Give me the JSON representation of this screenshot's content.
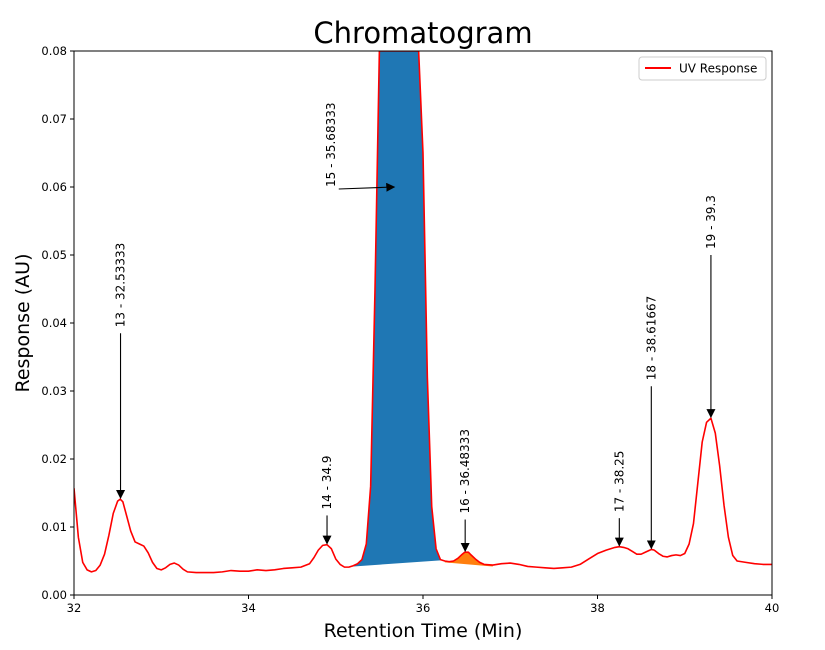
{
  "chart_data": {
    "type": "line",
    "title": "Chromatogram",
    "xlabel": "Retention Time (Min)",
    "ylabel": "Response (AU)",
    "xlim": [
      32,
      40
    ],
    "ylim": [
      0,
      0.08
    ],
    "xticks": [
      32,
      34,
      36,
      38,
      40
    ],
    "xtick_labels": [
      "32",
      "34",
      "36",
      "38",
      "40"
    ],
    "yticks": [
      0,
      0.01,
      0.02,
      0.03,
      0.04,
      0.05,
      0.06,
      0.07,
      0.08
    ],
    "ytick_labels": [
      "0.00",
      "0.01",
      "0.02",
      "0.03",
      "0.04",
      "0.05",
      "0.06",
      "0.07",
      "0.08"
    ],
    "grid": false,
    "legend": {
      "position": "top-right",
      "entries": [
        {
          "label": "UV Response",
          "color": "#ff0000"
        }
      ]
    },
    "series": [
      {
        "name": "UV Response",
        "color": "#ff0000",
        "x": [
          32.0,
          32.05,
          32.1,
          32.15,
          32.2,
          32.25,
          32.3,
          32.35,
          32.4,
          32.45,
          32.5,
          32.53,
          32.56,
          32.6,
          32.65,
          32.7,
          32.75,
          32.8,
          32.85,
          32.9,
          32.95,
          33.0,
          33.05,
          33.1,
          33.15,
          33.2,
          33.25,
          33.3,
          33.4,
          33.5,
          33.6,
          33.7,
          33.8,
          33.9,
          34.0,
          34.1,
          34.2,
          34.3,
          34.4,
          34.5,
          34.6,
          34.7,
          34.75,
          34.8,
          34.85,
          34.9,
          34.95,
          35.0,
          35.05,
          35.1,
          35.15,
          35.2,
          35.25,
          35.3,
          35.35,
          35.4,
          35.45,
          35.5,
          35.55,
          35.6,
          35.65,
          35.7,
          35.75,
          35.8,
          35.85,
          35.9,
          35.95,
          36.0,
          36.05,
          36.1,
          36.15,
          36.2,
          36.25,
          36.3,
          36.35,
          36.4,
          36.45,
          36.48,
          36.52,
          36.55,
          36.6,
          36.65,
          36.7,
          36.8,
          36.9,
          37.0,
          37.1,
          37.2,
          37.3,
          37.4,
          37.5,
          37.6,
          37.7,
          37.8,
          37.9,
          38.0,
          38.1,
          38.2,
          38.25,
          38.3,
          38.35,
          38.4,
          38.45,
          38.5,
          38.55,
          38.6,
          38.62,
          38.65,
          38.7,
          38.75,
          38.8,
          38.85,
          38.9,
          38.95,
          39.0,
          39.05,
          39.1,
          39.15,
          39.2,
          39.25,
          39.3,
          39.35,
          39.4,
          39.45,
          39.5,
          39.55,
          39.6,
          39.7,
          39.8,
          39.9,
          40.0
        ],
        "y": [
          0.0157,
          0.0085,
          0.0048,
          0.0037,
          0.0034,
          0.0036,
          0.0044,
          0.006,
          0.0088,
          0.012,
          0.0138,
          0.0141,
          0.0137,
          0.0118,
          0.0094,
          0.0078,
          0.0075,
          0.0072,
          0.0062,
          0.0048,
          0.0039,
          0.0037,
          0.004,
          0.0045,
          0.0047,
          0.0044,
          0.0038,
          0.0034,
          0.0033,
          0.0033,
          0.0033,
          0.0034,
          0.0036,
          0.0035,
          0.0035,
          0.0037,
          0.0036,
          0.0037,
          0.0039,
          0.004,
          0.0041,
          0.0046,
          0.0055,
          0.0066,
          0.0073,
          0.0074,
          0.0068,
          0.0053,
          0.0045,
          0.0041,
          0.0041,
          0.0043,
          0.0046,
          0.0052,
          0.0075,
          0.016,
          0.045,
          0.08,
          0.08,
          0.08,
          0.08,
          0.08,
          0.08,
          0.08,
          0.08,
          0.08,
          0.08,
          0.065,
          0.032,
          0.013,
          0.0068,
          0.0052,
          0.005,
          0.0049,
          0.005,
          0.0054,
          0.006,
          0.0063,
          0.0063,
          0.0059,
          0.0053,
          0.0048,
          0.0045,
          0.0044,
          0.0046,
          0.0047,
          0.0045,
          0.0042,
          0.0041,
          0.004,
          0.0039,
          0.004,
          0.0041,
          0.0045,
          0.0053,
          0.0061,
          0.0066,
          0.007,
          0.0071,
          0.007,
          0.0068,
          0.0064,
          0.006,
          0.006,
          0.0063,
          0.0066,
          0.0067,
          0.0066,
          0.0061,
          0.0057,
          0.0056,
          0.0058,
          0.0059,
          0.0058,
          0.0061,
          0.0075,
          0.0105,
          0.0165,
          0.0225,
          0.0254,
          0.026,
          0.0238,
          0.019,
          0.0132,
          0.0085,
          0.0058,
          0.005,
          0.0048,
          0.0046,
          0.0045,
          0.0045
        ]
      }
    ],
    "peak_fills": [
      {
        "name": "peak-15",
        "color": "#1f77b4",
        "x_start": 35.1,
        "x_end": 36.2,
        "baseline": [
          0.0041,
          0.0051
        ]
      },
      {
        "name": "peak-16",
        "color": "#ff7f0e",
        "x_start": 36.25,
        "x_end": 36.8,
        "baseline": [
          0.0048,
          0.0042
        ]
      }
    ],
    "annotations": [
      {
        "label": "13 - 32.53333",
        "x": 32.53333,
        "y": 0.0141,
        "text_y": 0.0385
      },
      {
        "label": "14 - 34.9",
        "x": 34.9,
        "y": 0.0074,
        "text_y": 0.0117
      },
      {
        "label": "15 - 35.68333",
        "x": 35.68333,
        "y": 0.06,
        "text_x": 35.0,
        "text_y": 0.06
      },
      {
        "label": "16 - 36.48333",
        "x": 36.48333,
        "y": 0.0063,
        "text_y": 0.0111
      },
      {
        "label": "17 - 38.25",
        "x": 38.25,
        "y": 0.0071,
        "text_y": 0.0113
      },
      {
        "label": "18 - 38.61667",
        "x": 38.61667,
        "y": 0.0067,
        "text_y": 0.0307
      },
      {
        "label": "19 - 39.3",
        "x": 39.3,
        "y": 0.026,
        "text_y": 0.05
      }
    ]
  }
}
